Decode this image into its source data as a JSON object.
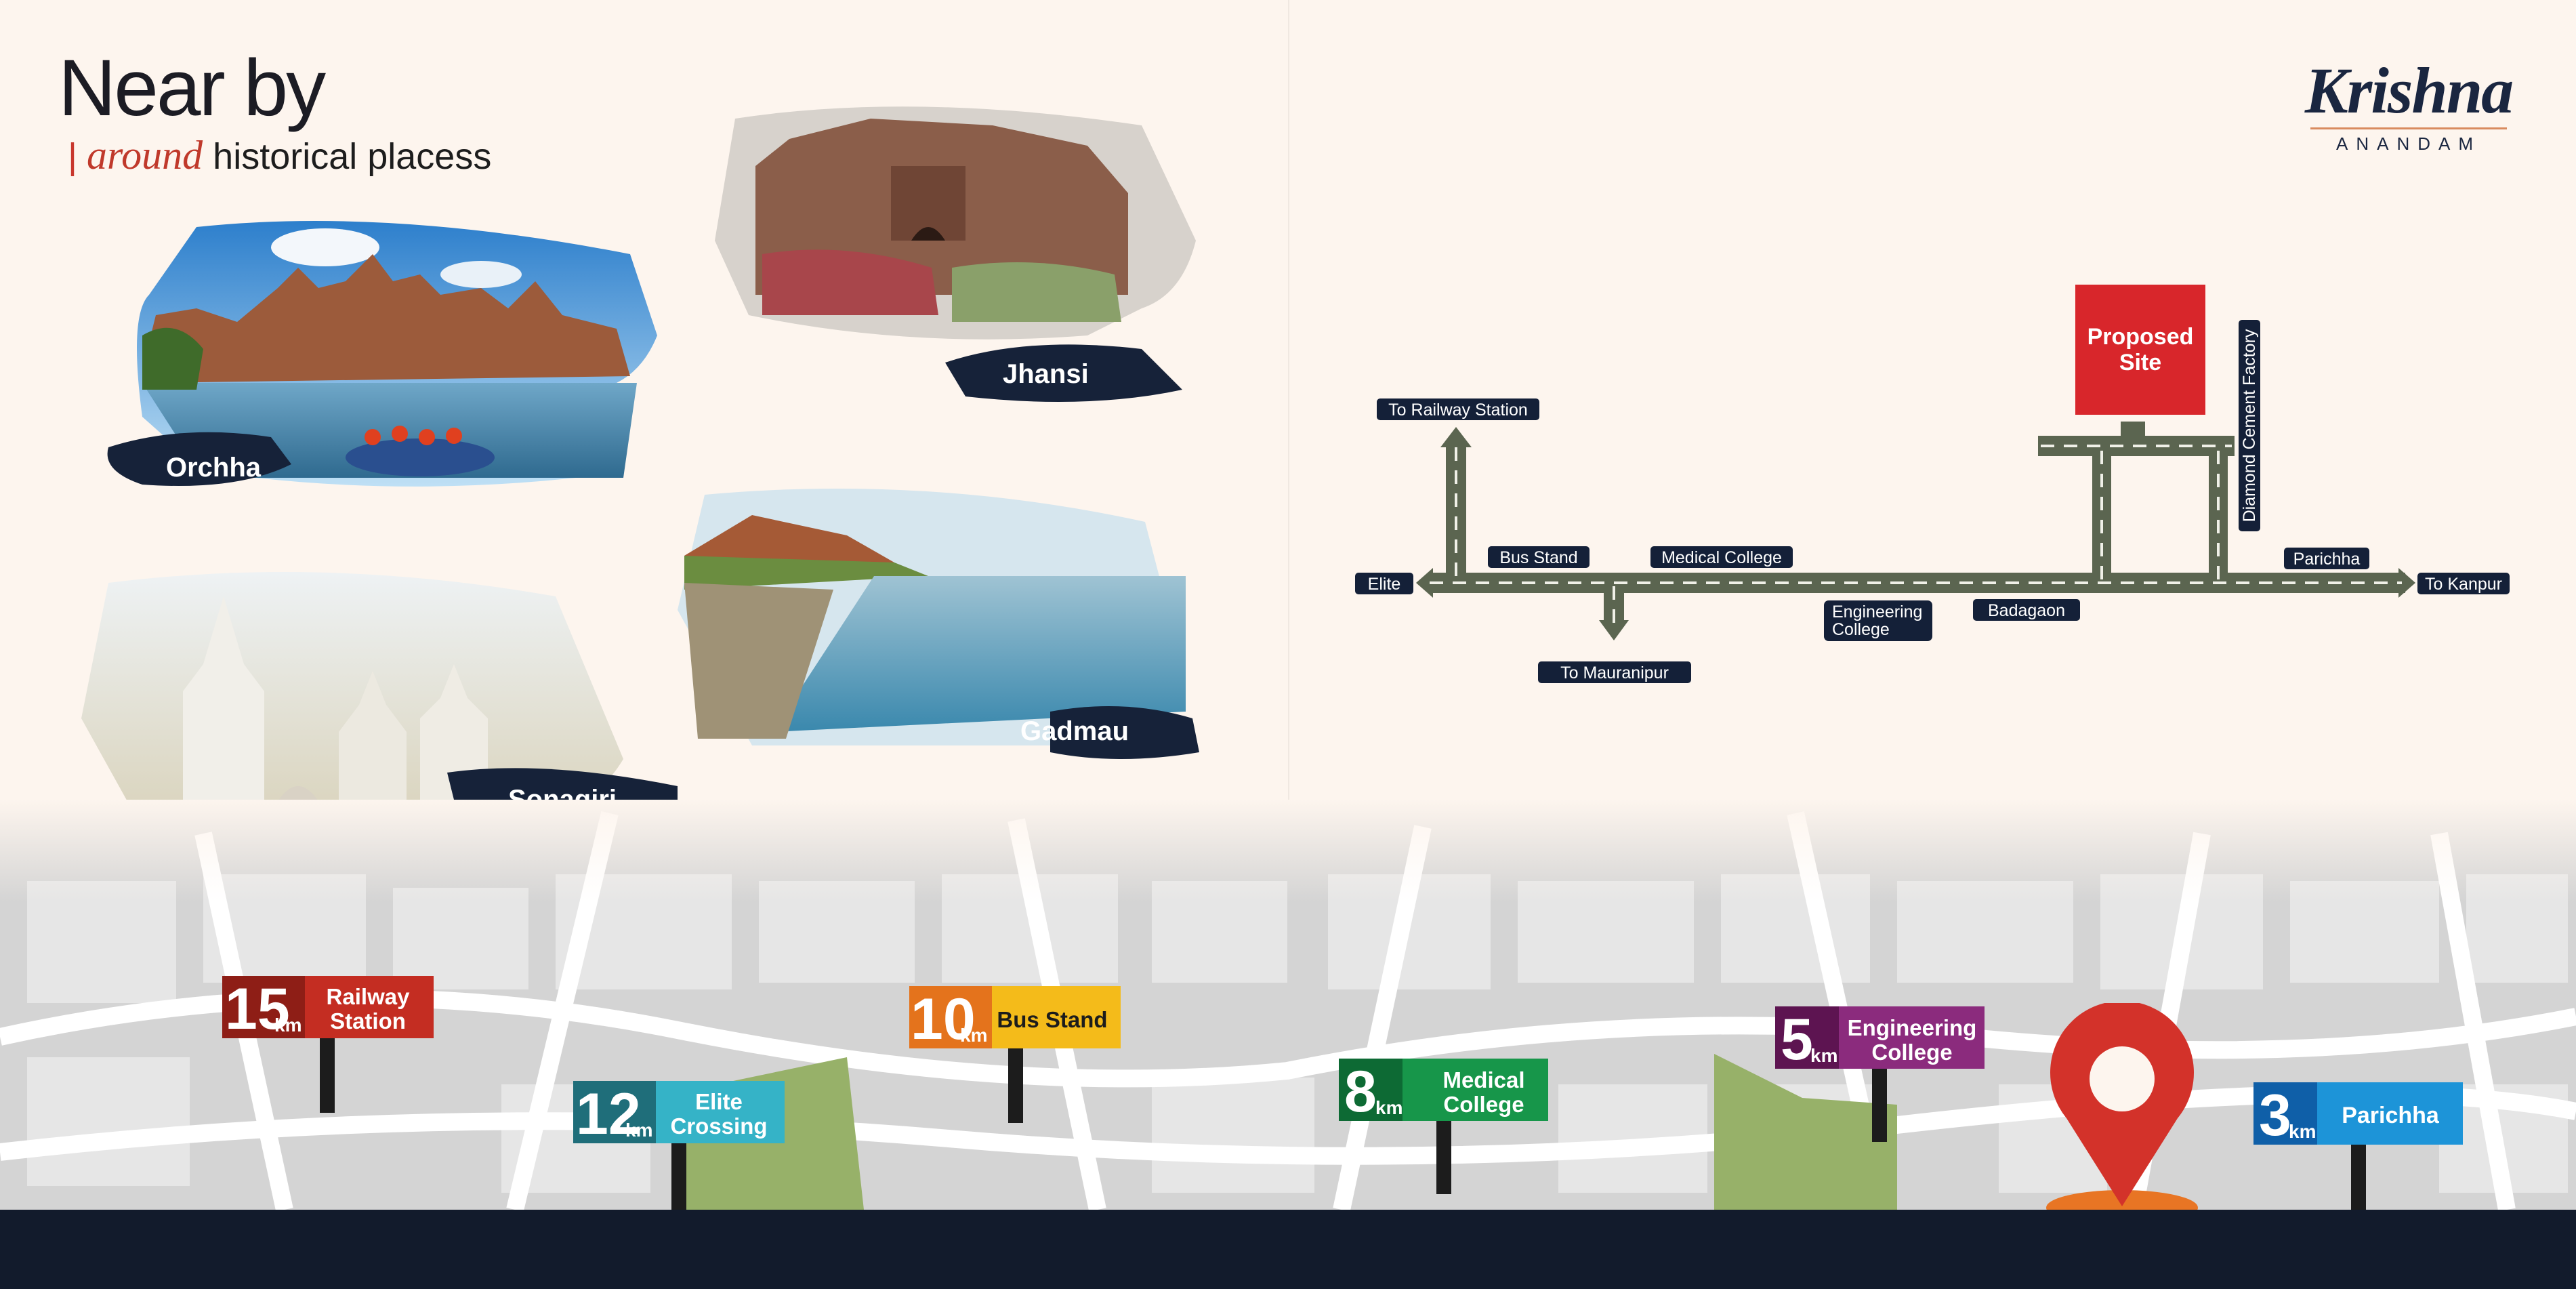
{
  "heading": {
    "title": "Near by",
    "bar": "|",
    "accent": "around",
    "rest": "historical placess"
  },
  "logo": {
    "name": "Krishna",
    "tagline": "ANANDAM"
  },
  "places": [
    {
      "name": "Orchha"
    },
    {
      "name": "Jhansi"
    },
    {
      "name": "Gadmau"
    },
    {
      "name": "Sonagiri"
    }
  ],
  "route_map": {
    "proposed_site": [
      "Proposed",
      "Site"
    ],
    "labels": {
      "railway": "To Railway Station",
      "elite": "Elite",
      "bus_stand": "Bus Stand",
      "medical_college": "Medical College",
      "engineering_college": [
        "Engineering",
        "College"
      ],
      "badagaon": "Badagaon",
      "mauranipur": "To Mauranipur",
      "parichha": "Parichha",
      "kanpur": "To Kanpur",
      "diamond": "Diamond Cement Factory"
    }
  },
  "distance_signs": [
    {
      "km": "15",
      "unit": "km",
      "label": [
        "Railway",
        "Station"
      ],
      "color_dark": "#8e1e16",
      "color": "#c42d22"
    },
    {
      "km": "12",
      "unit": "km",
      "label": [
        "Elite",
        "Crossing"
      ],
      "color_dark": "#1f6e7a",
      "color": "#35b3c7"
    },
    {
      "km": "10",
      "unit": "km",
      "label": [
        "Bus Stand"
      ],
      "color_dark": "#e4731c",
      "color": "#f4bb1a"
    },
    {
      "km": "8",
      "unit": "km",
      "label": [
        "Medical",
        "College"
      ],
      "color_dark": "#0d6a34",
      "color": "#17964a"
    },
    {
      "km": "5",
      "unit": "km",
      "label": [
        "Engineering",
        "College"
      ],
      "color_dark": "#5d1451",
      "color": "#8b2b7d"
    },
    {
      "km": "3",
      "unit": "km",
      "label": [
        "Parichha"
      ],
      "color_dark": "#0f5fa8",
      "color": "#1d94d8"
    }
  ],
  "colors": {
    "background": "#fdf5ee",
    "road": "#5b6550",
    "label_bg": "#142038",
    "site": "#d8262b",
    "footer": "#121b2c",
    "pin": "#d3322a",
    "pin_base": "#e87524"
  }
}
